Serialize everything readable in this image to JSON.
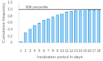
{
  "chart_data": {
    "type": "bar",
    "categories": [
      "1",
      "2",
      "3",
      "4",
      "5",
      "6",
      "7",
      "8",
      "9",
      "10",
      "11",
      "12",
      "13",
      "14",
      "15",
      "16",
      "17",
      "18"
    ],
    "values": [
      0.05,
      0.32,
      0.42,
      0.53,
      0.6,
      0.68,
      0.73,
      0.79,
      0.84,
      0.88,
      0.93,
      0.95,
      0.97,
      0.97,
      0.98,
      0.99,
      0.99,
      1.0
    ],
    "xlabel": "Incubation period in days",
    "ylabel": "Cumulative frequency",
    "ylim": [
      0,
      1.2
    ],
    "yticks": [
      0,
      0.2,
      0.4,
      0.6,
      0.8,
      {
        "value": 1.0,
        "label": "1.0"
      },
      1.2
    ],
    "grid": false,
    "annotations": [
      {
        "text": "90th percentile",
        "y": 1.0
      }
    ]
  }
}
